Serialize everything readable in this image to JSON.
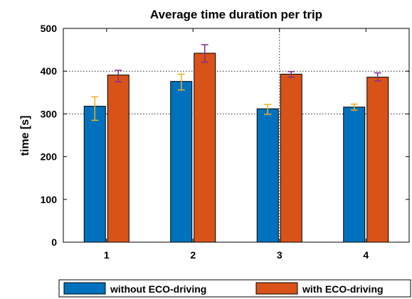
{
  "chart_data": {
    "type": "bar",
    "title": "Average time duration per trip",
    "xlabel": "",
    "ylabel": "time [s]",
    "ylim": [
      0,
      500
    ],
    "yticks": [
      0,
      100,
      200,
      300,
      400,
      500
    ],
    "categories": [
      "1",
      "2",
      "3",
      "4"
    ],
    "series": [
      {
        "name": "without ECO-driving",
        "color": "#0072BD",
        "error_color": "#EDB120",
        "values": [
          318,
          376,
          312,
          316
        ],
        "error_low": [
          285,
          356,
          299,
          309
        ],
        "error_high": [
          340,
          393,
          322,
          323
        ]
      },
      {
        "name": "with ECO-driving",
        "color": "#D95319",
        "error_color": "#7E2F8E",
        "values": [
          391,
          442,
          393,
          386
        ],
        "error_low": [
          375,
          421,
          386,
          377
        ],
        "error_high": [
          402,
          462,
          399,
          396
        ]
      }
    ],
    "grid": {
      "x_lines_at": [
        "3"
      ],
      "y_lines_at": [
        300,
        400
      ],
      "style": "dotted"
    },
    "legend": {
      "placement": "bottom",
      "orientation": "horizontal"
    }
  }
}
